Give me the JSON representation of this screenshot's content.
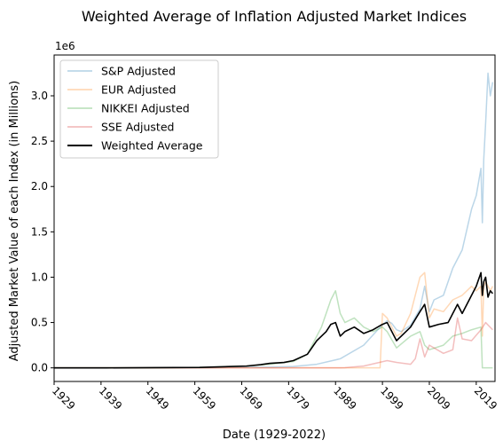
{
  "chart_data": {
    "type": "line",
    "title": "Weighted Average of Inflation Adjusted Market Indices",
    "xlabel": "Date (1929-2022)",
    "ylabel": "Adjusted Market Value of each Index (in Millions)",
    "y_offset_label": "1e6",
    "xlim": [
      1929,
      2023
    ],
    "ylim": [
      -150000,
      3450000
    ],
    "x_ticks": [
      "1929",
      "1939",
      "1949",
      "1959",
      "1969",
      "1979",
      "1989",
      "1999",
      "2009",
      "2019"
    ],
    "y_ticks": [
      "0.0",
      "0.5",
      "1.0",
      "1.5",
      "2.0",
      "2.5",
      "3.0"
    ],
    "legend_position": "top-left",
    "grid": false,
    "series": [
      {
        "name": "S&P Adjusted",
        "color": "#1f77b4",
        "opacity": 0.3,
        "x": [
          1929,
          1940,
          1950,
          1960,
          1970,
          1975,
          1980,
          1985,
          1990,
          1995,
          1998,
          2000,
          2001,
          2002,
          2003,
          2005,
          2007,
          2008,
          2009,
          2010,
          2012,
          2014,
          2016,
          2018,
          2019,
          2020,
          2020.3,
          2020.6,
          2021,
          2021.5,
          2022,
          2022.5
        ],
        "values": [
          0,
          0,
          0,
          2000,
          8000,
          8000,
          15000,
          40000,
          100000,
          250000,
          420000,
          520000,
          490000,
          420000,
          400000,
          470000,
          650000,
          900000,
          620000,
          750000,
          800000,
          1100000,
          1300000,
          1750000,
          1900000,
          2200000,
          1600000,
          2300000,
          2700000,
          3250000,
          3000000,
          3150000
        ]
      },
      {
        "name": "EUR Adjusted",
        "color": "#ff7f0e",
        "opacity": 0.3,
        "x": [
          1929,
          1998.5,
          1999,
          2000,
          2001,
          2002,
          2003,
          2005,
          2007,
          2008,
          2009,
          2010,
          2012,
          2014,
          2016,
          2018,
          2019,
          2020,
          2020.3,
          2020.6,
          2021,
          2022,
          2022.5
        ],
        "values": [
          0,
          0,
          600000,
          550000,
          450000,
          350000,
          380000,
          600000,
          1000000,
          1050000,
          550000,
          650000,
          620000,
          750000,
          800000,
          900000,
          850000,
          900000,
          350000,
          900000,
          950000,
          850000,
          900000
        ]
      },
      {
        "name": "NIKKEI Adjusted",
        "color": "#2ca02c",
        "opacity": 0.3,
        "x": [
          1929,
          1950,
          1960,
          1970,
          1975,
          1980,
          1983,
          1986,
          1988,
          1989,
          1990,
          1991,
          1993,
          1995,
          1997,
          1999,
          2000,
          2002,
          2005,
          2007,
          2008,
          2009,
          2012,
          2014,
          2016,
          2018,
          2020,
          2020.3,
          2022.5
        ],
        "values": [
          0,
          0,
          5000,
          20000,
          40000,
          70000,
          150000,
          450000,
          750000,
          850000,
          600000,
          500000,
          550000,
          450000,
          400000,
          450000,
          400000,
          220000,
          350000,
          400000,
          250000,
          200000,
          250000,
          350000,
          380000,
          420000,
          450000,
          0,
          0
        ]
      },
      {
        "name": "SSE Adjusted",
        "color": "#d62728",
        "opacity": 0.3,
        "x": [
          1929,
          1990,
          1991,
          1995,
          2000,
          2002,
          2005,
          2006,
          2007,
          2008,
          2009,
          2012,
          2014,
          2015,
          2016,
          2018,
          2020,
          2021,
          2022.5
        ],
        "values": [
          0,
          0,
          2000,
          20000,
          80000,
          60000,
          40000,
          100000,
          320000,
          120000,
          250000,
          160000,
          200000,
          550000,
          320000,
          300000,
          420000,
          500000,
          420000
        ]
      },
      {
        "name": "Weighted Average",
        "color": "#000000",
        "opacity": 1.0,
        "x": [
          1929,
          1940,
          1950,
          1960,
          1970,
          1973,
          1975,
          1978,
          1980,
          1983,
          1985,
          1987,
          1988,
          1989,
          1990,
          1991,
          1993,
          1995,
          1997,
          1999,
          2000,
          2002,
          2003,
          2005,
          2007,
          2008,
          2009,
          2011,
          2013,
          2015,
          2016,
          2018,
          2019,
          2020,
          2020.3,
          2020.6,
          2021,
          2021.5,
          2022,
          2022.5
        ],
        "values": [
          0,
          0,
          2000,
          5000,
          20000,
          35000,
          50000,
          60000,
          80000,
          150000,
          300000,
          400000,
          480000,
          500000,
          350000,
          400000,
          450000,
          380000,
          420000,
          480000,
          500000,
          300000,
          350000,
          450000,
          620000,
          700000,
          450000,
          480000,
          500000,
          700000,
          600000,
          800000,
          900000,
          1050000,
          800000,
          950000,
          1000000,
          780000,
          850000,
          820000
        ]
      }
    ]
  }
}
